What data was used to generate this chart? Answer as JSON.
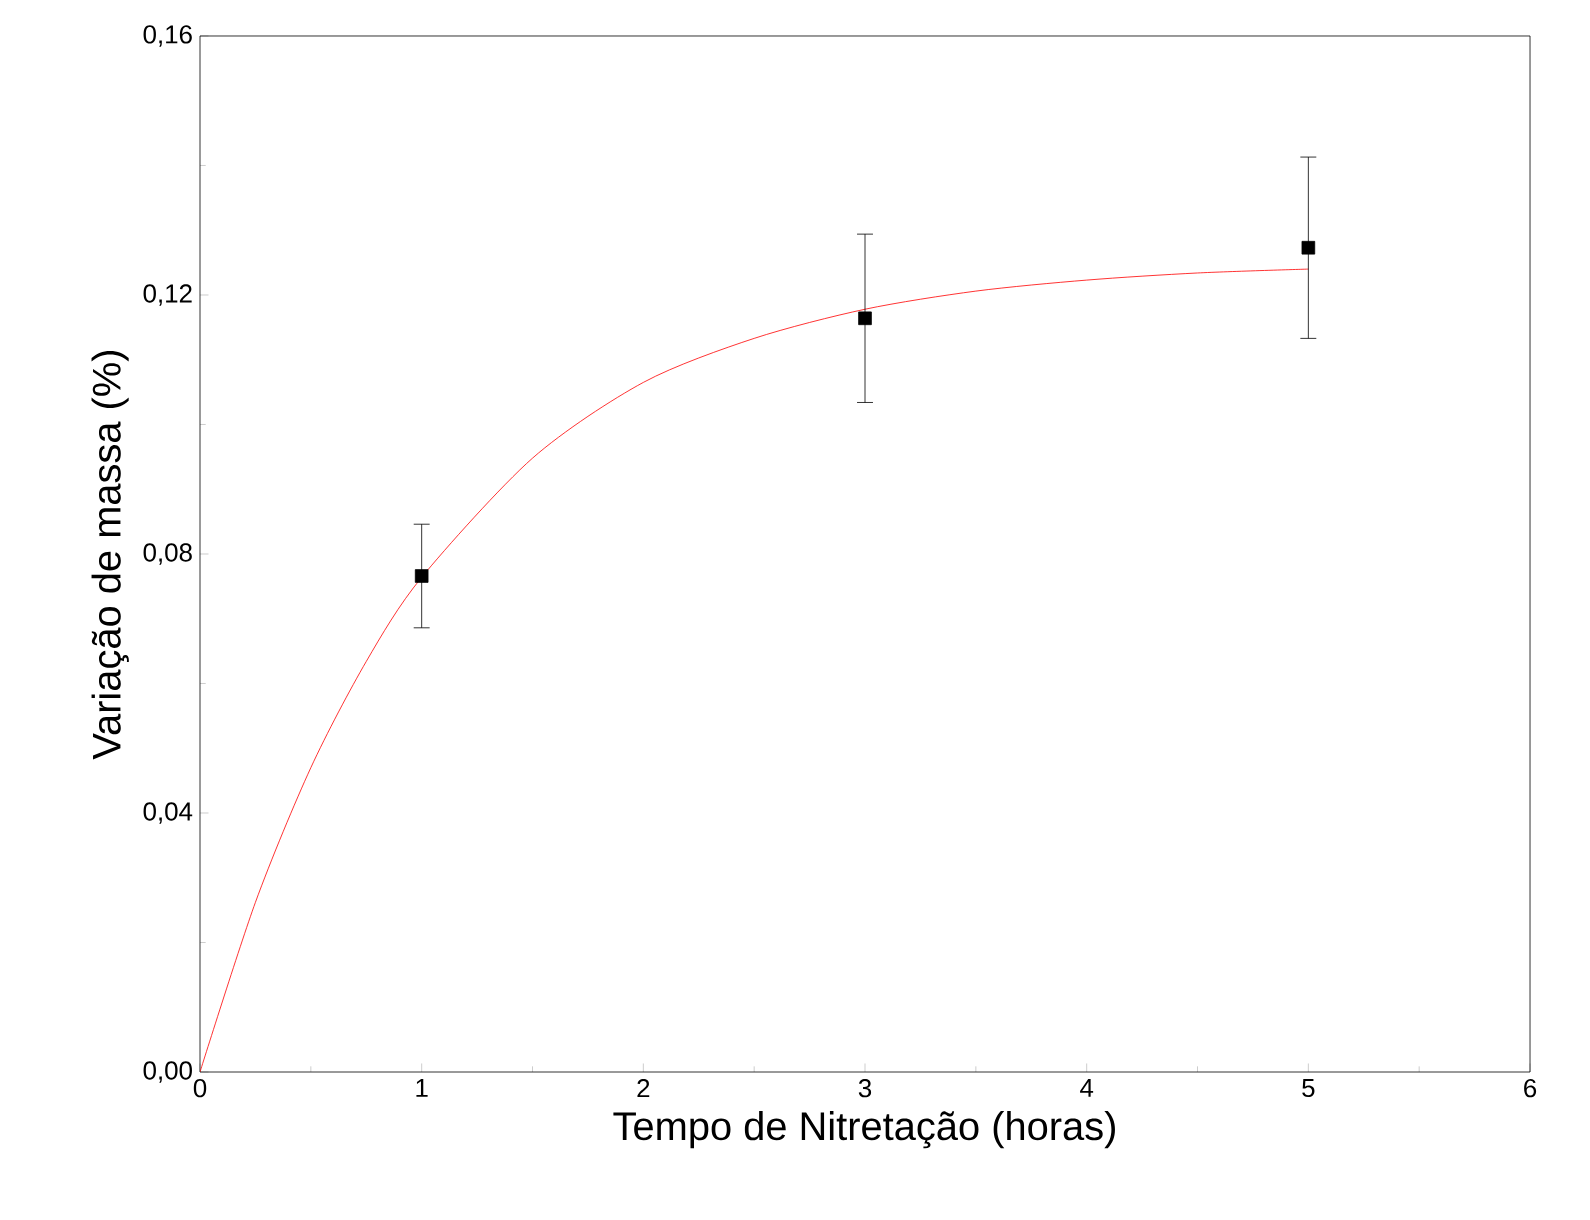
{
  "chart_data": {
    "type": "scatter",
    "xlabel": "Tempo de Nitretação (horas)",
    "ylabel": "Variação de massa (%)",
    "xlim": [
      0,
      6
    ],
    "ylim": [
      0,
      0.16
    ],
    "xticks": [
      0,
      1,
      2,
      3,
      4,
      5,
      6
    ],
    "yticks": [
      {
        "value": 0,
        "label": "0,00"
      },
      {
        "value": 0.04,
        "label": "0,04"
      },
      {
        "value": 0.08,
        "label": "0,08"
      },
      {
        "value": 0.12,
        "label": "0,12"
      },
      {
        "value": 0.16,
        "label": "0,16"
      }
    ],
    "grid": false,
    "series": [
      {
        "type": "line",
        "color": "#ff0000",
        "marker": "none",
        "line_style": "solid",
        "x": [
          0,
          0.25,
          0.5,
          0.75,
          1,
          1.5,
          2,
          2.5,
          3,
          3.5,
          4,
          4.5,
          5
        ],
        "values": [
          0,
          0.0262,
          0.047,
          0.0634,
          0.0764,
          0.0948,
          0.1065,
          0.1133,
          0.1178,
          0.1206,
          0.1223,
          0.1234,
          0.124
        ]
      },
      {
        "color": "#000000",
        "marker": "square",
        "x": [
          1,
          3,
          5
        ],
        "values": [
          0.0766,
          0.1164,
          0.1273
        ],
        "errors": [
          0.008,
          0.013,
          0.014
        ]
      }
    ]
  }
}
